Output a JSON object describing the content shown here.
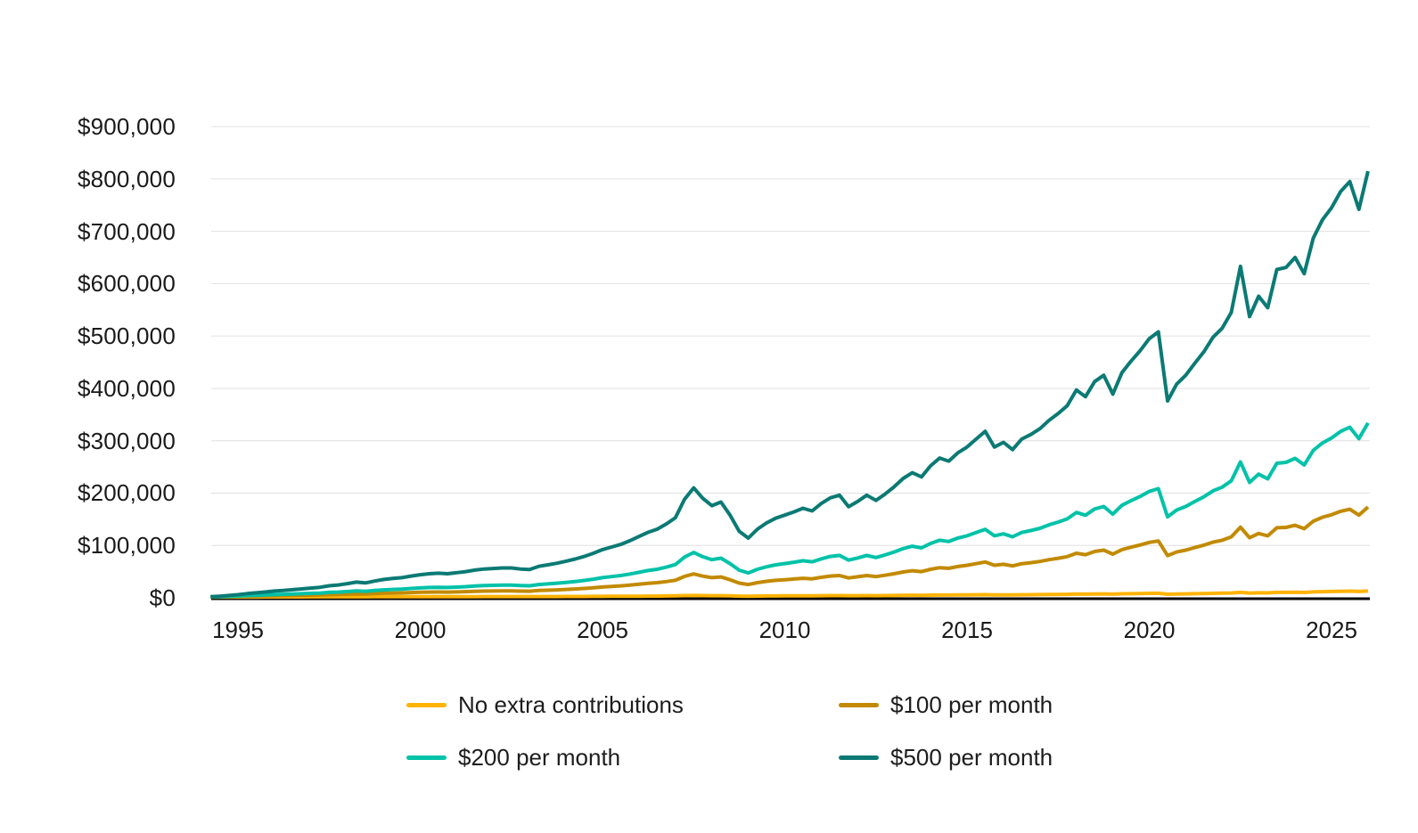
{
  "page": {
    "background": "#ffffff",
    "text_color": "#1a1a1a"
  },
  "chart_data": {
    "type": "line",
    "title": "",
    "xlabel": "",
    "ylabel": "",
    "x_unit": "year",
    "y_unit": "USD",
    "grid": "horizontal-only",
    "gridline_color": "#e0e0e0",
    "axis_line_color": "#000000",
    "legend_position": "bottom",
    "ylim": [
      0,
      900000
    ],
    "xlim": [
      1994.25,
      2026.05
    ],
    "x_ticks": {
      "values": [
        1995,
        2000,
        2005,
        2010,
        2015,
        2020,
        2025
      ],
      "labels": [
        "1995",
        "2000",
        "2005",
        "2010",
        "2015",
        "2020",
        "2025"
      ]
    },
    "y_ticks": {
      "values": [
        0,
        100000,
        200000,
        300000,
        400000,
        500000,
        600000,
        700000,
        800000,
        900000
      ],
      "labels": [
        "$0",
        "$100,000",
        "$200,000",
        "$300,000",
        "$400,000",
        "$500,000",
        "$600,000",
        "$700,000",
        "$800,000",
        "$900,000"
      ]
    },
    "x": [
      1994.25,
      1994.5,
      1994.75,
      1995,
      1995.25,
      1995.5,
      1995.75,
      1996,
      1996.25,
      1996.5,
      1996.75,
      1997,
      1997.25,
      1997.5,
      1997.75,
      1998,
      1998.25,
      1998.5,
      1998.75,
      1999,
      1999.25,
      1999.5,
      1999.75,
      2000,
      2000.25,
      2000.5,
      2000.75,
      2001,
      2001.25,
      2001.5,
      2001.75,
      2002,
      2002.25,
      2002.5,
      2002.75,
      2003,
      2003.25,
      2003.5,
      2003.75,
      2004,
      2004.25,
      2004.5,
      2004.75,
      2005,
      2005.25,
      2005.5,
      2005.75,
      2006,
      2006.25,
      2006.5,
      2006.75,
      2007,
      2007.25,
      2007.5,
      2007.75,
      2008,
      2008.25,
      2008.5,
      2008.75,
      2009,
      2009.25,
      2009.5,
      2009.75,
      2010,
      2010.25,
      2010.5,
      2010.75,
      2011,
      2011.25,
      2011.5,
      2011.75,
      2012,
      2012.25,
      2012.5,
      2012.75,
      2013,
      2013.25,
      2013.5,
      2013.75,
      2014,
      2014.25,
      2014.5,
      2014.75,
      2015,
      2015.25,
      2015.5,
      2015.75,
      2016,
      2016.25,
      2016.5,
      2016.75,
      2017,
      2017.25,
      2017.5,
      2017.75,
      2018,
      2018.25,
      2018.5,
      2018.75,
      2019,
      2019.25,
      2019.5,
      2019.75,
      2020,
      2020.25,
      2020.5,
      2020.75,
      2021,
      2021.25,
      2021.5,
      2021.75,
      2022,
      2022.25,
      2022.5,
      2022.75,
      2023,
      2023.25,
      2023.5,
      2023.75,
      2024,
      2024.25,
      2024.5,
      2024.75,
      2025,
      2025.25,
      2025.5,
      2025.75,
      2026
    ],
    "series": [
      {
        "name": "No extra contributions",
        "color": "#FFB304",
        "values": [
          1500,
          1500,
          1600,
          1600,
          1600,
          1600,
          1700,
          1700,
          1700,
          1700,
          1700,
          1800,
          1800,
          1800,
          1800,
          1900,
          1900,
          1900,
          2000,
          2000,
          2000,
          2000,
          2100,
          2100,
          2100,
          2200,
          2100,
          2200,
          2200,
          2200,
          2300,
          2300,
          2300,
          2300,
          2300,
          2300,
          2300,
          2400,
          2400,
          2500,
          2500,
          2600,
          2700,
          2800,
          2900,
          2900,
          3000,
          3100,
          3300,
          3300,
          3500,
          3700,
          4200,
          4500,
          4200,
          4000,
          4100,
          3700,
          3300,
          3100,
          3300,
          3500,
          3600,
          3700,
          3800,
          3900,
          3800,
          4000,
          4200,
          4300,
          4000,
          4100,
          4300,
          4100,
          4300,
          4500,
          4700,
          4900,
          4800,
          5100,
          5300,
          5200,
          5400,
          5600,
          5800,
          6000,
          5600,
          5700,
          5500,
          5800,
          5900,
          6100,
          6300,
          6500,
          6700,
          7100,
          6900,
          7300,
          7500,
          7000,
          7600,
          7900,
          8200,
          8500,
          8700,
          6800,
          7300,
          7500,
          7800,
          8100,
          8500,
          8800,
          9200,
          10400,
          9100,
          9600,
          9300,
          10300,
          10400,
          10700,
          10200,
          11200,
          11700,
          12000,
          12400,
          12700,
          12000,
          13000
        ]
      },
      {
        "name": "$100 per month",
        "color": "#C28A00",
        "values": [
          1600,
          1800,
          2200,
          2500,
          2900,
          3200,
          3500,
          3900,
          4200,
          4500,
          4800,
          5100,
          5400,
          6100,
          6400,
          6900,
          7500,
          7200,
          8000,
          8600,
          9000,
          9300,
          10000,
          10500,
          10900,
          11100,
          10900,
          11300,
          11800,
          12400,
          12800,
          13000,
          13200,
          13200,
          12800,
          12600,
          13900,
          14500,
          15100,
          16000,
          16800,
          17900,
          19200,
          20600,
          21700,
          22800,
          24200,
          25900,
          27600,
          28900,
          31000,
          33500,
          40900,
          45600,
          41300,
          38400,
          39900,
          34600,
          28000,
          25300,
          28900,
          31400,
          33300,
          34600,
          35900,
          37300,
          36300,
          39200,
          41600,
          42600,
          38000,
          40100,
          42600,
          40500,
          43000,
          46000,
          49400,
          51700,
          50000,
          54400,
          57600,
          56300,
          59700,
          62100,
          65200,
          68400,
          62100,
          64000,
          61000,
          65200,
          67100,
          69500,
          72800,
          75600,
          78700,
          85100,
          82300,
          88500,
          91000,
          83400,
          92100,
          96700,
          100900,
          105800,
          108500,
          80600,
          87400,
          91000,
          95900,
          100500,
          106400,
          110000,
          116400,
          135000,
          114700,
          122900,
          118300,
          133700,
          134500,
          138500,
          132000,
          146400,
          153800,
          158600,
          165200,
          169200,
          158000,
          173400
        ]
      },
      {
        "name": "$200 per month",
        "color": "#00C2A8",
        "values": [
          1700,
          2100,
          2700,
          3400,
          4200,
          4800,
          5400,
          6200,
          6600,
          7200,
          7800,
          8500,
          9100,
          10300,
          10900,
          11900,
          13200,
          12500,
          14000,
          15200,
          16000,
          16600,
          17900,
          18900,
          19700,
          20100,
          19700,
          20500,
          21300,
          22600,
          23400,
          23800,
          24200,
          24200,
          23400,
          23000,
          25400,
          26600,
          27900,
          29500,
          31100,
          33200,
          35600,
          38500,
          40500,
          42600,
          45400,
          48700,
          52000,
          54400,
          58500,
          63400,
          77700,
          86700,
          78500,
          72800,
          75700,
          65400,
          52800,
          47500,
          54400,
          59300,
          63000,
          65400,
          67900,
          70800,
          68700,
          74400,
          78900,
          81000,
          72000,
          76100,
          81000,
          76900,
          81800,
          87500,
          94000,
          98500,
          95300,
          103800,
          110000,
          107500,
          114100,
          118500,
          124700,
          130800,
          118500,
          122200,
          116500,
          124700,
          128400,
          132800,
          139400,
          144700,
          150800,
          163100,
          157800,
          169600,
          174500,
          159800,
          176600,
          185500,
          193700,
          203100,
          208400,
          154500,
          167600,
          174500,
          183900,
          192900,
          204300,
          211300,
          223500,
          259500,
          220300,
          236200,
          227200,
          257000,
          258700,
          266400,
          253800,
          281500,
          295800,
          305200,
          317900,
          325700,
          304000,
          333800
        ]
      },
      {
        "name": "$500 per month",
        "color": "#0B7A74",
        "values": [
          2000,
          3000,
          4500,
          6000,
          8000,
          9500,
          11000,
          13000,
          14000,
          15500,
          17000,
          18500,
          20000,
          23000,
          24500,
          27000,
          30000,
          28500,
          32000,
          35000,
          37000,
          38500,
          41500,
          44000,
          46000,
          47000,
          46000,
          48000,
          50000,
          53000,
          55000,
          56000,
          57000,
          57000,
          55000,
          54000,
          60000,
          63000,
          66000,
          70000,
          74000,
          79000,
          85000,
          92000,
          97000,
          102000,
          109000,
          117000,
          125000,
          131000,
          141000,
          153000,
          188000,
          210000,
          190000,
          176000,
          183000,
          158000,
          127000,
          114000,
          131000,
          143000,
          152000,
          158000,
          164000,
          171000,
          166000,
          180000,
          191000,
          196000,
          174000,
          184000,
          196000,
          186000,
          198000,
          212000,
          228000,
          239000,
          231000,
          252000,
          267000,
          261000,
          277000,
          288000,
          303000,
          318000,
          288000,
          297000,
          283000,
          303000,
          312000,
          323000,
          339000,
          352000,
          367000,
          397000,
          384000,
          413000,
          425000,
          389000,
          430000,
          452000,
          472000,
          495000,
          508000,
          376000,
          408000,
          425000,
          448000,
          470000,
          498000,
          515000,
          545000,
          633000,
          537000,
          576000,
          554000,
          627000,
          631000,
          650000,
          619000,
          687000,
          722000,
          745000,
          776000,
          795000,
          742000,
          815000
        ]
      }
    ]
  },
  "legend": {
    "items": [
      {
        "label": "No extra contributions",
        "color": "#FFB304"
      },
      {
        "label": "$100 per month",
        "color": "#C28A00"
      },
      {
        "label": "$200 per month",
        "color": "#00C2A8"
      },
      {
        "label": "$500 per month",
        "color": "#0B7A74"
      }
    ]
  }
}
